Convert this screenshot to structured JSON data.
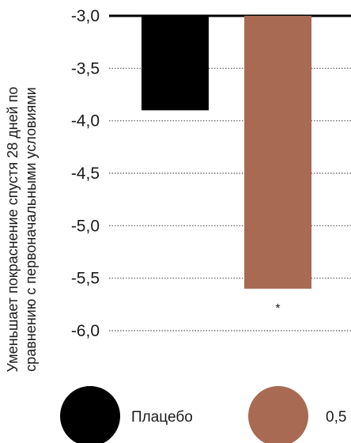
{
  "chart_data": {
    "type": "bar",
    "ylabel_lines": [
      "Уменьшает покраснение спустя 28 дней по",
      "сравнению с первоначальными условиями"
    ],
    "categories": [
      "Плацебо",
      "0,5"
    ],
    "values": [
      -3.9,
      -5.6
    ],
    "colors": [
      "#000000",
      "#a86a52"
    ],
    "ylim": [
      -6.0,
      -3.0
    ],
    "yticks": [
      {
        "value": -3.0,
        "label": "-3,0"
      },
      {
        "value": -3.5,
        "label": "-3,5"
      },
      {
        "value": -4.0,
        "label": "-4,0"
      },
      {
        "value": -4.5,
        "label": "-4,5"
      },
      {
        "value": -5.0,
        "label": "-5,0"
      },
      {
        "value": -5.5,
        "label": "-5,5"
      },
      {
        "value": -6.0,
        "label": "-6,0"
      }
    ],
    "annotations": [
      {
        "category_index": 1,
        "text": "*"
      }
    ],
    "grid": "dotted horizontal",
    "legend": {
      "position": "bottom",
      "entries": [
        {
          "label": "Плацебо",
          "color": "#000000"
        },
        {
          "label": "0,5",
          "color": "#a86a52"
        }
      ]
    }
  }
}
